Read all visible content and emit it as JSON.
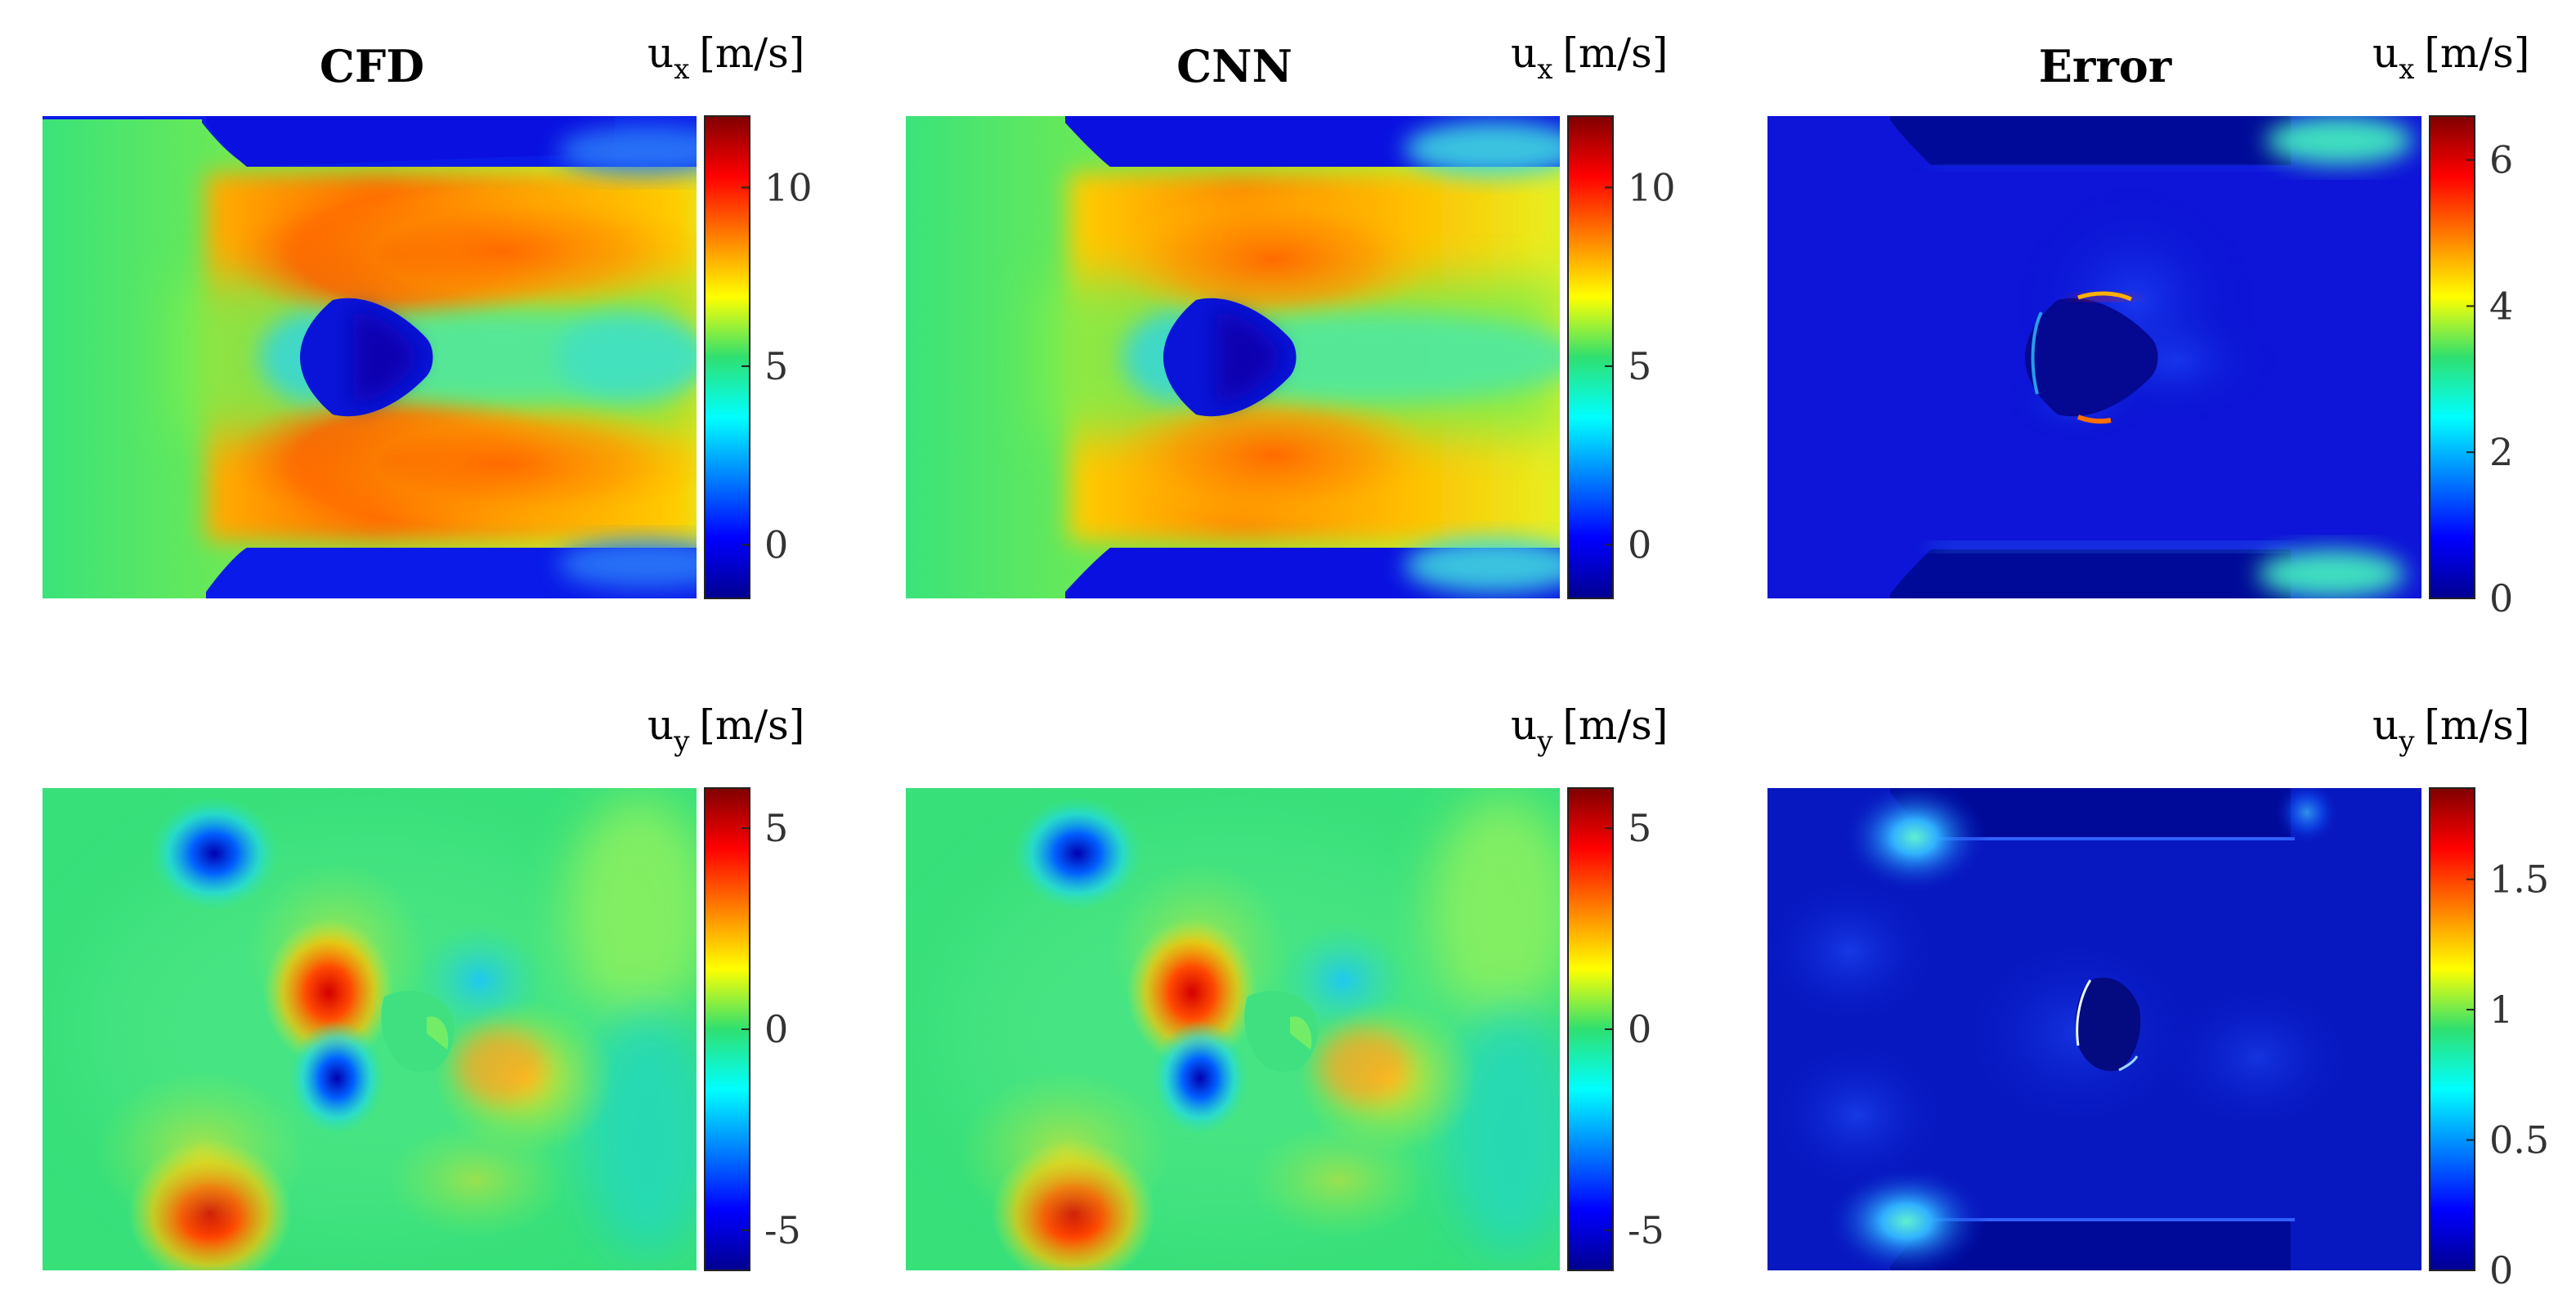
{
  "column_titles": [
    "CFD",
    "CNN",
    "Error"
  ],
  "colormap": "jet",
  "panels": [
    {
      "id": "cfd-ux",
      "row": 0,
      "col": 0,
      "var": "x",
      "kind": "ux",
      "colorbar": {
        "base": "u",
        "sub": "x",
        "unit": "[m/s]",
        "min": -1.5,
        "max": 12,
        "ticks": [
          {
            "v": 10,
            "t": "10"
          },
          {
            "v": 5,
            "t": "5"
          },
          {
            "v": 0,
            "t": "0"
          }
        ]
      }
    },
    {
      "id": "cnn-ux",
      "row": 0,
      "col": 1,
      "var": "x",
      "kind": "ux",
      "colorbar": {
        "base": "u",
        "sub": "x",
        "unit": "[m/s]",
        "min": -1.5,
        "max": 12,
        "ticks": [
          {
            "v": 10,
            "t": "10"
          },
          {
            "v": 5,
            "t": "5"
          },
          {
            "v": 0,
            "t": "0"
          }
        ]
      }
    },
    {
      "id": "err-ux",
      "row": 0,
      "col": 2,
      "var": "x",
      "kind": "err-ux",
      "colorbar": {
        "base": "u",
        "sub": "x",
        "unit": "[m/s]",
        "min": 0,
        "max": 6.6,
        "ticks": [
          {
            "v": 6,
            "t": "6"
          },
          {
            "v": 4,
            "t": "4"
          },
          {
            "v": 2,
            "t": "2"
          },
          {
            "v": 0,
            "t": "0"
          }
        ]
      }
    },
    {
      "id": "cfd-uy",
      "row": 1,
      "col": 0,
      "var": "y",
      "kind": "uy",
      "colorbar": {
        "base": "u",
        "sub": "y",
        "unit": "[m/s]",
        "min": -6,
        "max": 6,
        "ticks": [
          {
            "v": 5,
            "t": "5"
          },
          {
            "v": 0,
            "t": "0"
          },
          {
            "v": -5,
            "t": "-5"
          }
        ]
      }
    },
    {
      "id": "cnn-uy",
      "row": 1,
      "col": 1,
      "var": "y",
      "kind": "uy",
      "colorbar": {
        "base": "u",
        "sub": "y",
        "unit": "[m/s]",
        "min": -6,
        "max": 6,
        "ticks": [
          {
            "v": 5,
            "t": "5"
          },
          {
            "v": 0,
            "t": "0"
          },
          {
            "v": -5,
            "t": "-5"
          }
        ]
      }
    },
    {
      "id": "err-uy",
      "row": 1,
      "col": 2,
      "var": "y",
      "kind": "err-uy",
      "colorbar": {
        "base": "u",
        "sub": "y",
        "unit": "[m/s]",
        "min": 0,
        "max": 1.85,
        "ticks": [
          {
            "v": 1.5,
            "t": "1.5"
          },
          {
            "v": 1,
            "t": "1"
          },
          {
            "v": 0.5,
            "t": "0.5"
          },
          {
            "v": 0,
            "t": "0"
          }
        ]
      }
    }
  ]
}
